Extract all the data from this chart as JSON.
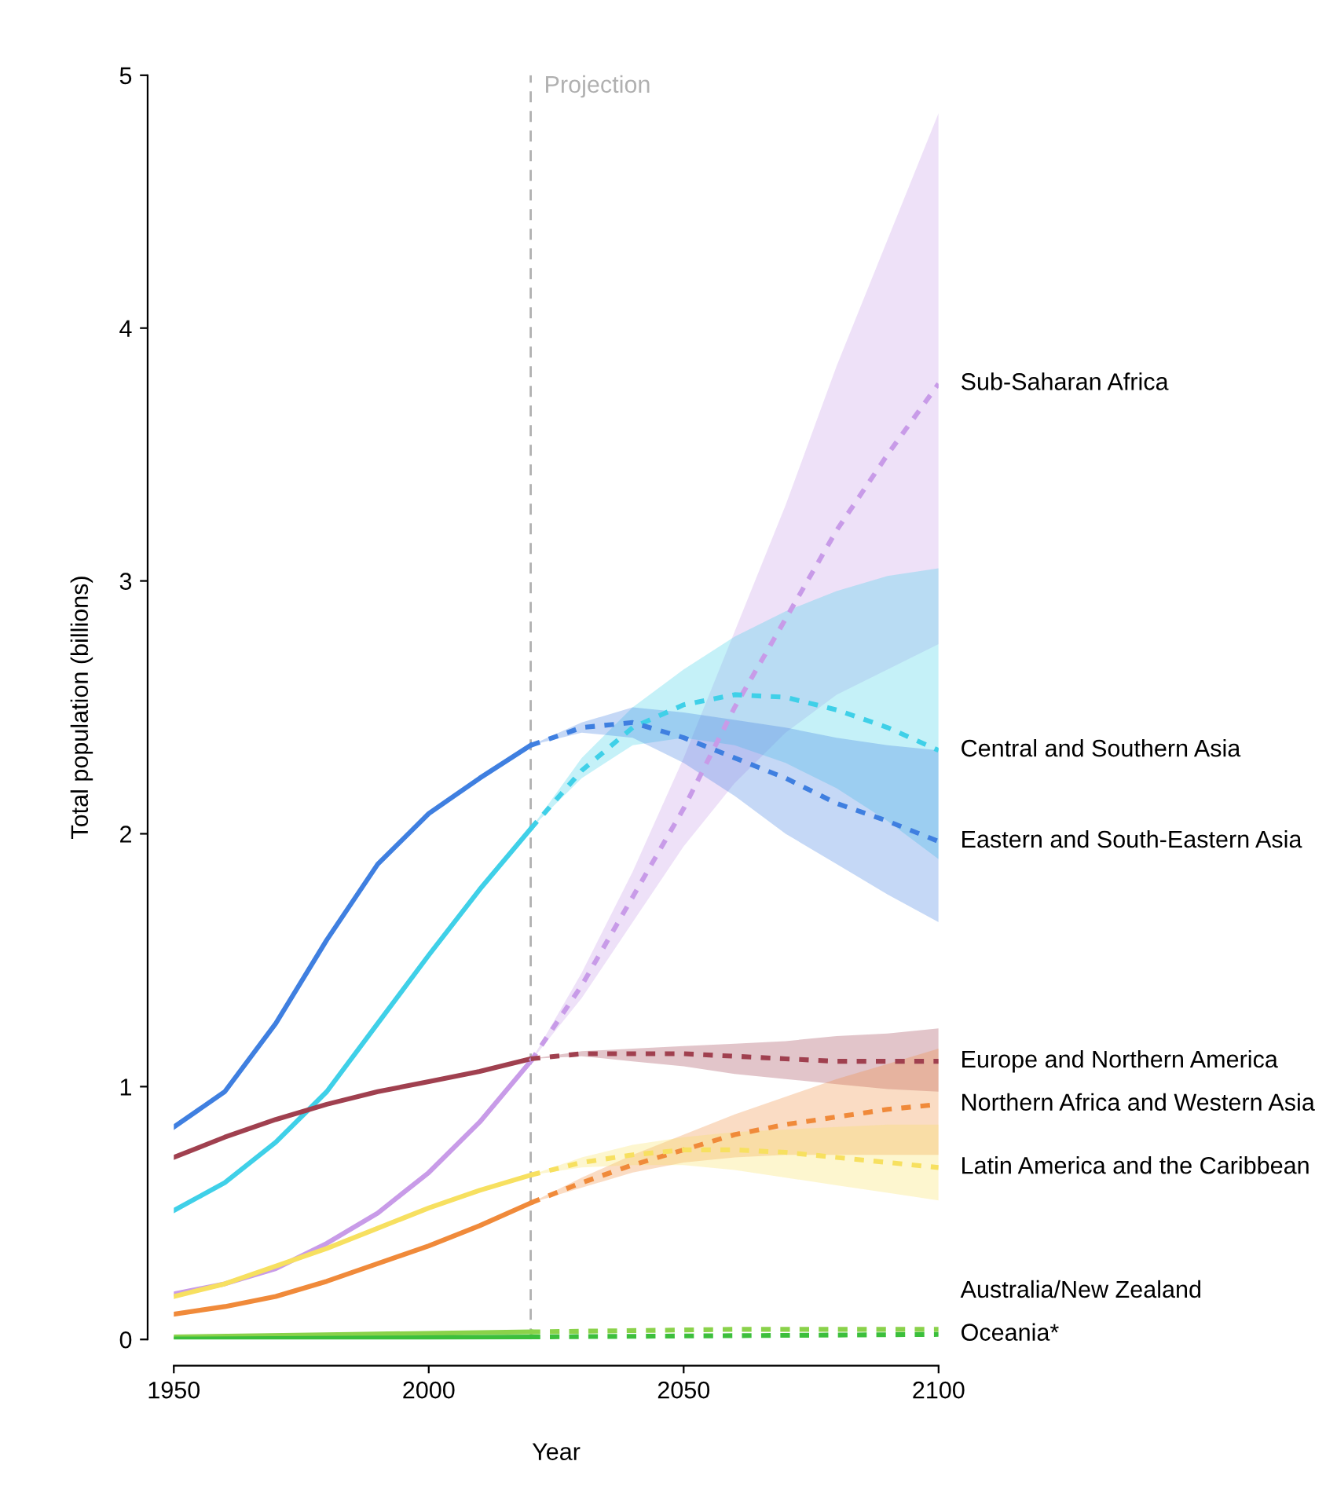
{
  "chart_data": {
    "type": "line",
    "xlabel": "Year",
    "ylabel": "Total population (billions)",
    "xlim": [
      1950,
      2100
    ],
    "ylim": [
      0,
      5
    ],
    "xticks": [
      1950,
      2000,
      2050,
      2100
    ],
    "yticks": [
      0,
      1,
      2,
      3,
      4,
      5
    ],
    "grid": false,
    "legend": false,
    "ref_lines": [
      {
        "axis": "x",
        "value": 2020,
        "label": "Projection",
        "color": "#b0b0b0",
        "line_style": "dashed"
      }
    ],
    "series": [
      {
        "color": "#3f7fe0",
        "line_style": "solid",
        "x": [
          1950,
          1960,
          1970,
          1980,
          1990,
          2000,
          2010,
          2020
        ],
        "values": [
          0.84,
          0.98,
          1.25,
          1.58,
          1.88,
          2.08,
          2.22,
          2.35
        ]
      },
      {
        "color": "#3fd0e8",
        "line_style": "solid",
        "x": [
          1950,
          1960,
          1970,
          1980,
          1990,
          2000,
          2010,
          2020
        ],
        "values": [
          0.51,
          0.62,
          0.78,
          0.98,
          1.25,
          1.52,
          1.78,
          2.02
        ]
      },
      {
        "color": "#c89be8",
        "line_style": "solid",
        "x": [
          1950,
          1960,
          1970,
          1980,
          1990,
          2000,
          2010,
          2020
        ],
        "values": [
          0.18,
          0.22,
          0.28,
          0.38,
          0.5,
          0.66,
          0.86,
          1.1
        ]
      },
      {
        "color": "#a0404f",
        "line_style": "solid",
        "x": [
          1950,
          1960,
          1970,
          1980,
          1990,
          2000,
          2010,
          2020
        ],
        "values": [
          0.72,
          0.8,
          0.87,
          0.93,
          0.98,
          1.02,
          1.06,
          1.11
        ]
      },
      {
        "color": "#f08a3a",
        "line_style": "solid",
        "x": [
          1950,
          1960,
          1970,
          1980,
          1990,
          2000,
          2010,
          2020
        ],
        "values": [
          0.1,
          0.13,
          0.17,
          0.23,
          0.3,
          0.37,
          0.45,
          0.54
        ]
      },
      {
        "color": "#f7e060",
        "line_style": "solid",
        "x": [
          1950,
          1960,
          1970,
          1980,
          1990,
          2000,
          2010,
          2020
        ],
        "values": [
          0.17,
          0.22,
          0.29,
          0.36,
          0.44,
          0.52,
          0.59,
          0.65
        ]
      },
      {
        "color": "#8ad24a",
        "line_style": "solid",
        "x": [
          1950,
          1985,
          2020
        ],
        "values": [
          0.01,
          0.02,
          0.03
        ]
      },
      {
        "color": "#3cbf3c",
        "line_style": "solid",
        "x": [
          1950,
          1985,
          2020
        ],
        "values": [
          0.002,
          0.005,
          0.01
        ]
      },
      {
        "name": "Sub-Saharan Africa",
        "color": "#c89be8",
        "line_style": "dotted",
        "x": [
          2020,
          2030,
          2040,
          2050,
          2060,
          2070,
          2080,
          2090,
          2100
        ],
        "values": [
          1.1,
          1.4,
          1.75,
          2.1,
          2.5,
          2.85,
          3.2,
          3.5,
          3.78
        ],
        "lower": [
          1.1,
          1.35,
          1.65,
          1.95,
          2.2,
          2.4,
          2.55,
          2.65,
          2.75
        ],
        "upper": [
          1.1,
          1.45,
          1.85,
          2.3,
          2.8,
          3.3,
          3.85,
          4.35,
          4.85
        ]
      },
      {
        "name": "Central and Southern Asia",
        "color": "#3fd0e8",
        "line_style": "dotted",
        "x": [
          2020,
          2030,
          2040,
          2050,
          2060,
          2070,
          2080,
          2090,
          2100
        ],
        "values": [
          2.02,
          2.25,
          2.42,
          2.51,
          2.55,
          2.54,
          2.49,
          2.42,
          2.33
        ],
        "lower": [
          2.02,
          2.22,
          2.35,
          2.38,
          2.35,
          2.28,
          2.18,
          2.05,
          1.9
        ],
        "upper": [
          2.02,
          2.3,
          2.5,
          2.65,
          2.78,
          2.88,
          2.96,
          3.02,
          3.05
        ]
      },
      {
        "name": "Eastern and South-Eastern Asia",
        "color": "#3f7fe0",
        "line_style": "dotted",
        "x": [
          2020,
          2030,
          2040,
          2050,
          2060,
          2070,
          2080,
          2090,
          2100
        ],
        "values": [
          2.35,
          2.42,
          2.44,
          2.38,
          2.3,
          2.22,
          2.12,
          2.05,
          1.97
        ],
        "lower": [
          2.35,
          2.4,
          2.38,
          2.28,
          2.15,
          2.0,
          1.88,
          1.76,
          1.65
        ],
        "upper": [
          2.35,
          2.44,
          2.5,
          2.48,
          2.45,
          2.42,
          2.38,
          2.35,
          2.33
        ]
      },
      {
        "name": "Europe and Northern America",
        "color": "#a0404f",
        "line_style": "dotted",
        "x": [
          2020,
          2030,
          2040,
          2050,
          2060,
          2070,
          2080,
          2090,
          2100
        ],
        "values": [
          1.11,
          1.13,
          1.13,
          1.13,
          1.12,
          1.11,
          1.1,
          1.1,
          1.1
        ],
        "lower": [
          1.11,
          1.12,
          1.1,
          1.08,
          1.05,
          1.03,
          1.01,
          0.99,
          0.98
        ],
        "upper": [
          1.11,
          1.14,
          1.15,
          1.16,
          1.17,
          1.18,
          1.2,
          1.21,
          1.23
        ]
      },
      {
        "name": "Northern Africa and Western Asia",
        "color": "#f08a3a",
        "line_style": "dotted",
        "x": [
          2020,
          2030,
          2040,
          2050,
          2060,
          2070,
          2080,
          2090,
          2100
        ],
        "values": [
          0.54,
          0.62,
          0.69,
          0.75,
          0.81,
          0.85,
          0.88,
          0.91,
          0.93
        ],
        "lower": [
          0.54,
          0.6,
          0.66,
          0.7,
          0.72,
          0.73,
          0.73,
          0.73,
          0.73
        ],
        "upper": [
          0.54,
          0.64,
          0.73,
          0.81,
          0.89,
          0.96,
          1.03,
          1.09,
          1.15
        ]
      },
      {
        "name": "Latin America and the Caribbean",
        "color": "#f7e060",
        "line_style": "dotted",
        "x": [
          2020,
          2030,
          2040,
          2050,
          2060,
          2070,
          2080,
          2090,
          2100
        ],
        "values": [
          0.65,
          0.7,
          0.73,
          0.75,
          0.75,
          0.74,
          0.72,
          0.7,
          0.68
        ],
        "lower": [
          0.65,
          0.68,
          0.69,
          0.69,
          0.67,
          0.64,
          0.61,
          0.58,
          0.55
        ],
        "upper": [
          0.65,
          0.72,
          0.77,
          0.8,
          0.82,
          0.83,
          0.84,
          0.85,
          0.85
        ]
      },
      {
        "name": "Australia/New Zealand",
        "color": "#8ad24a",
        "line_style": "dotted",
        "x": [
          2020,
          2060,
          2100
        ],
        "values": [
          0.03,
          0.04,
          0.04
        ]
      },
      {
        "name": "Oceania*",
        "color": "#3cbf3c",
        "line_style": "dotted",
        "x": [
          2020,
          2060,
          2100
        ],
        "values": [
          0.01,
          0.015,
          0.02
        ]
      }
    ]
  }
}
